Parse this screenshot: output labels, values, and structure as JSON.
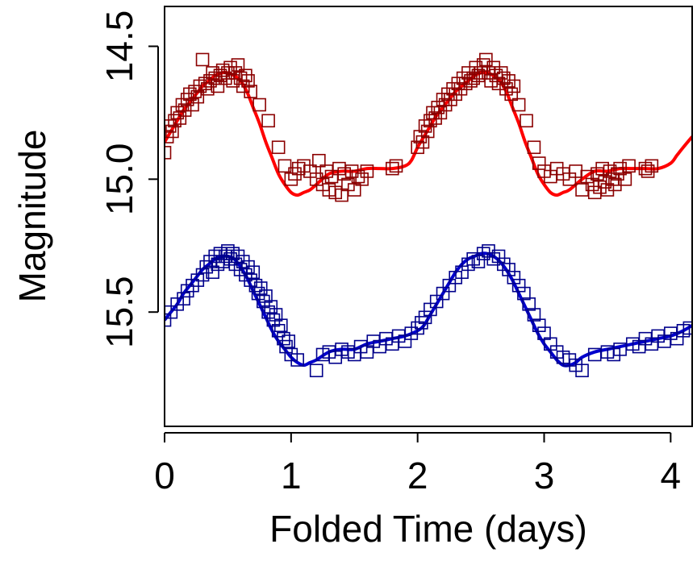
{
  "chart_data": {
    "type": "scatter",
    "title": "",
    "xlabel": "Folded Time (days)",
    "ylabel": "Magnitude",
    "xlim": [
      0,
      4.17
    ],
    "ylim": [
      15.93,
      14.35
    ],
    "y_inverted": true,
    "x_ticks": [
      0,
      1,
      2,
      3,
      4
    ],
    "x_tick_labels": [
      "0",
      "1",
      "2",
      "3",
      "4"
    ],
    "y_ticks": [
      14.5,
      15.0,
      15.5
    ],
    "y_tick_labels": [
      "14.5",
      "15.0",
      "15.5"
    ],
    "grid": false,
    "legend": "none",
    "series": [
      {
        "color": "#8b0000",
        "fit_color": "#ff0000",
        "marker": "open-square",
        "fit_curve": {
          "x": [
            0,
            0.05,
            0.1,
            0.15,
            0.2,
            0.25,
            0.3,
            0.35,
            0.4,
            0.45,
            0.5,
            0.55,
            0.6,
            0.65,
            0.7,
            0.75,
            0.8,
            0.85,
            0.9,
            0.95,
            1.0,
            1.05,
            1.1,
            1.15,
            1.2,
            1.3,
            1.4,
            1.5,
            1.6,
            1.7,
            1.8,
            1.9,
            1.95,
            2.0,
            2.05,
            2.1,
            2.15,
            2.2,
            2.25,
            2.3,
            2.35,
            2.4,
            2.45,
            2.5,
            2.55,
            2.6,
            2.65,
            2.7,
            2.75,
            2.8,
            2.85,
            2.9,
            2.95,
            3.0,
            3.05,
            3.1,
            3.15,
            3.2,
            3.3,
            3.4,
            3.5,
            3.6,
            3.7,
            3.8,
            3.9,
            4.0,
            4.05,
            4.1,
            4.17
          ],
          "y": [
            14.86,
            14.82,
            14.78,
            14.74,
            14.71,
            14.68,
            14.65,
            14.63,
            14.61,
            14.6,
            14.6,
            14.61,
            14.63,
            14.67,
            14.73,
            14.79,
            14.86,
            14.92,
            14.98,
            15.02,
            15.05,
            15.06,
            15.05,
            15.04,
            15.02,
            14.98,
            14.97,
            14.97,
            14.96,
            14.96,
            14.96,
            14.95,
            14.93,
            14.88,
            14.84,
            14.8,
            14.76,
            14.73,
            14.7,
            14.67,
            14.65,
            14.63,
            14.61,
            14.6,
            14.6,
            14.61,
            14.63,
            14.67,
            14.73,
            14.79,
            14.86,
            14.92,
            14.98,
            15.02,
            15.05,
            15.06,
            15.05,
            15.04,
            15.0,
            14.97,
            14.97,
            14.96,
            14.96,
            14.96,
            14.96,
            14.94,
            14.91,
            14.88,
            14.84
          ]
        },
        "points": {
          "x": [
            0.0,
            0.02,
            0.04,
            0.06,
            0.08,
            0.1,
            0.12,
            0.14,
            0.16,
            0.18,
            0.2,
            0.22,
            0.24,
            0.26,
            0.28,
            0.3,
            0.32,
            0.34,
            0.36,
            0.38,
            0.4,
            0.42,
            0.44,
            0.46,
            0.48,
            0.5,
            0.52,
            0.54,
            0.56,
            0.58,
            0.6,
            0.62,
            0.64,
            0.66,
            0.68,
            0.75,
            0.82,
            0.9,
            0.95,
            1.0,
            1.03,
            1.06,
            1.1,
            1.15,
            1.2,
            1.22,
            1.25,
            1.28,
            1.3,
            1.32,
            1.35,
            1.38,
            1.4,
            1.42,
            1.45,
            1.48,
            1.5,
            1.53,
            1.56,
            1.6,
            1.8,
            1.83,
            2.0,
            2.02,
            2.04,
            2.06,
            2.08,
            2.1,
            2.12,
            2.14,
            2.16,
            2.18,
            2.2,
            2.22,
            2.24,
            2.26,
            2.28,
            2.3,
            2.32,
            2.34,
            2.36,
            2.38,
            2.4,
            2.42,
            2.44,
            2.46,
            2.48,
            2.5,
            2.52,
            2.54,
            2.56,
            2.58,
            2.6,
            2.62,
            2.64,
            2.66,
            2.68,
            2.7,
            2.72,
            2.74,
            2.76,
            2.8,
            2.86,
            2.92,
            2.96,
            3.0,
            3.05,
            3.1,
            3.15,
            3.2,
            3.25,
            3.3,
            3.34,
            3.38,
            3.4,
            3.42,
            3.44,
            3.46,
            3.48,
            3.5,
            3.52,
            3.54,
            3.56,
            3.58,
            3.6,
            3.64,
            3.67,
            3.8,
            3.82,
            3.85
          ],
          "y": [
            14.9,
            14.84,
            14.8,
            14.82,
            14.78,
            14.75,
            14.77,
            14.72,
            14.74,
            14.7,
            14.68,
            14.72,
            14.67,
            14.69,
            14.65,
            14.55,
            14.64,
            14.66,
            14.63,
            14.6,
            14.62,
            14.65,
            14.61,
            14.59,
            14.62,
            14.6,
            14.58,
            14.63,
            14.6,
            14.57,
            14.62,
            14.65,
            14.61,
            14.63,
            14.67,
            14.72,
            14.78,
            14.88,
            14.95,
            15.0,
            14.98,
            14.96,
            14.95,
            14.97,
            15.0,
            14.93,
            15.02,
            14.97,
            15.04,
            14.99,
            15.05,
            14.96,
            15.06,
            14.98,
            15.02,
            14.97,
            15.04,
            14.99,
            15.0,
            14.97,
            14.96,
            14.95,
            14.88,
            14.84,
            14.86,
            14.8,
            14.82,
            14.78,
            14.75,
            14.77,
            14.73,
            14.75,
            14.7,
            14.72,
            14.68,
            14.7,
            14.66,
            14.68,
            14.64,
            14.66,
            14.62,
            14.64,
            14.6,
            14.63,
            14.62,
            14.58,
            14.61,
            14.6,
            14.57,
            14.55,
            14.6,
            14.63,
            14.58,
            14.61,
            14.64,
            14.6,
            14.62,
            14.66,
            14.63,
            14.68,
            14.65,
            14.72,
            14.78,
            14.88,
            14.94,
            14.97,
            14.99,
            14.96,
            14.98,
            15.0,
            14.97,
            15.04,
            14.99,
            15.02,
            15.05,
            14.98,
            15.03,
            14.96,
            15.01,
            15.04,
            14.97,
            15.0,
            15.02,
            14.98,
            14.96,
            15.0,
            14.95,
            14.96,
            14.97,
            14.95
          ]
        }
      },
      {
        "color": "#00008b",
        "fit_color": "#0000cd",
        "marker": "open-square",
        "fit_curve": {
          "x": [
            0,
            0.05,
            0.1,
            0.15,
            0.2,
            0.25,
            0.3,
            0.35,
            0.4,
            0.45,
            0.5,
            0.55,
            0.6,
            0.65,
            0.7,
            0.75,
            0.8,
            0.85,
            0.9,
            0.95,
            1.0,
            1.05,
            1.1,
            1.15,
            1.2,
            1.3,
            1.4,
            1.5,
            1.6,
            1.7,
            1.8,
            1.9,
            2.0,
            2.05,
            2.1,
            2.15,
            2.2,
            2.25,
            2.3,
            2.35,
            2.4,
            2.45,
            2.5,
            2.55,
            2.6,
            2.65,
            2.7,
            2.75,
            2.8,
            2.85,
            2.9,
            2.95,
            3.0,
            3.05,
            3.1,
            3.15,
            3.2,
            3.25,
            3.3,
            3.4,
            3.5,
            3.6,
            3.7,
            3.8,
            3.9,
            4.0,
            4.1,
            4.17
          ],
          "y": [
            15.53,
            15.5,
            15.47,
            15.43,
            15.4,
            15.37,
            15.34,
            15.32,
            15.3,
            15.29,
            15.29,
            15.3,
            15.33,
            15.37,
            15.42,
            15.47,
            15.52,
            15.57,
            15.61,
            15.64,
            15.67,
            15.69,
            15.7,
            15.69,
            15.68,
            15.65,
            15.64,
            15.64,
            15.62,
            15.61,
            15.6,
            15.59,
            15.57,
            15.55,
            15.51,
            15.47,
            15.43,
            15.39,
            15.35,
            15.32,
            15.3,
            15.29,
            15.28,
            15.28,
            15.29,
            15.31,
            15.34,
            15.38,
            15.43,
            15.48,
            15.53,
            15.58,
            15.62,
            15.65,
            15.68,
            15.7,
            15.7,
            15.69,
            15.67,
            15.65,
            15.64,
            15.63,
            15.62,
            15.61,
            15.6,
            15.59,
            15.57,
            15.55
          ]
        },
        "points": {
          "x": [
            0.0,
            0.05,
            0.1,
            0.15,
            0.18,
            0.22,
            0.26,
            0.3,
            0.33,
            0.36,
            0.38,
            0.4,
            0.42,
            0.44,
            0.46,
            0.48,
            0.5,
            0.52,
            0.54,
            0.56,
            0.58,
            0.6,
            0.62,
            0.64,
            0.66,
            0.68,
            0.7,
            0.72,
            0.74,
            0.76,
            0.78,
            0.8,
            0.82,
            0.84,
            0.86,
            0.88,
            0.9,
            0.92,
            0.94,
            0.96,
            0.98,
            1.0,
            1.05,
            1.2,
            1.25,
            1.3,
            1.35,
            1.4,
            1.45,
            1.5,
            1.55,
            1.6,
            1.65,
            1.7,
            1.75,
            1.8,
            1.85,
            1.9,
            1.95,
            2.0,
            2.03,
            2.06,
            2.1,
            2.15,
            2.2,
            2.25,
            2.3,
            2.35,
            2.4,
            2.44,
            2.48,
            2.52,
            2.56,
            2.6,
            2.64,
            2.68,
            2.72,
            2.76,
            2.8,
            2.84,
            2.88,
            2.92,
            2.96,
            3.0,
            3.05,
            3.1,
            3.15,
            3.2,
            3.25,
            3.3,
            3.4,
            3.5,
            3.55,
            3.6,
            3.7,
            3.75,
            3.8,
            3.85,
            3.9,
            3.95,
            4.0,
            4.05,
            4.1,
            4.15
          ],
          "y": [
            15.53,
            15.5,
            15.47,
            15.45,
            15.42,
            15.4,
            15.38,
            15.36,
            15.33,
            15.31,
            15.35,
            15.29,
            15.32,
            15.28,
            15.31,
            15.29,
            15.27,
            15.3,
            15.28,
            15.32,
            15.29,
            15.34,
            15.31,
            15.36,
            15.33,
            15.38,
            15.35,
            15.4,
            15.43,
            15.41,
            15.46,
            15.44,
            15.5,
            15.48,
            15.53,
            15.51,
            15.57,
            15.55,
            15.6,
            15.63,
            15.61,
            15.66,
            15.68,
            15.72,
            15.66,
            15.65,
            15.67,
            15.64,
            15.65,
            15.66,
            15.63,
            15.65,
            15.61,
            15.63,
            15.6,
            15.62,
            15.59,
            15.61,
            15.58,
            15.56,
            15.54,
            15.52,
            15.49,
            15.46,
            15.43,
            15.4,
            15.37,
            15.35,
            15.32,
            15.3,
            15.31,
            15.28,
            15.27,
            15.3,
            15.29,
            15.32,
            15.34,
            15.37,
            15.4,
            15.43,
            15.47,
            15.51,
            15.55,
            15.58,
            15.62,
            15.65,
            15.67,
            15.68,
            15.7,
            15.72,
            15.66,
            15.65,
            15.66,
            15.64,
            15.62,
            15.63,
            15.6,
            15.62,
            15.59,
            15.61,
            15.58,
            15.6,
            15.57,
            15.56
          ]
        }
      }
    ]
  }
}
